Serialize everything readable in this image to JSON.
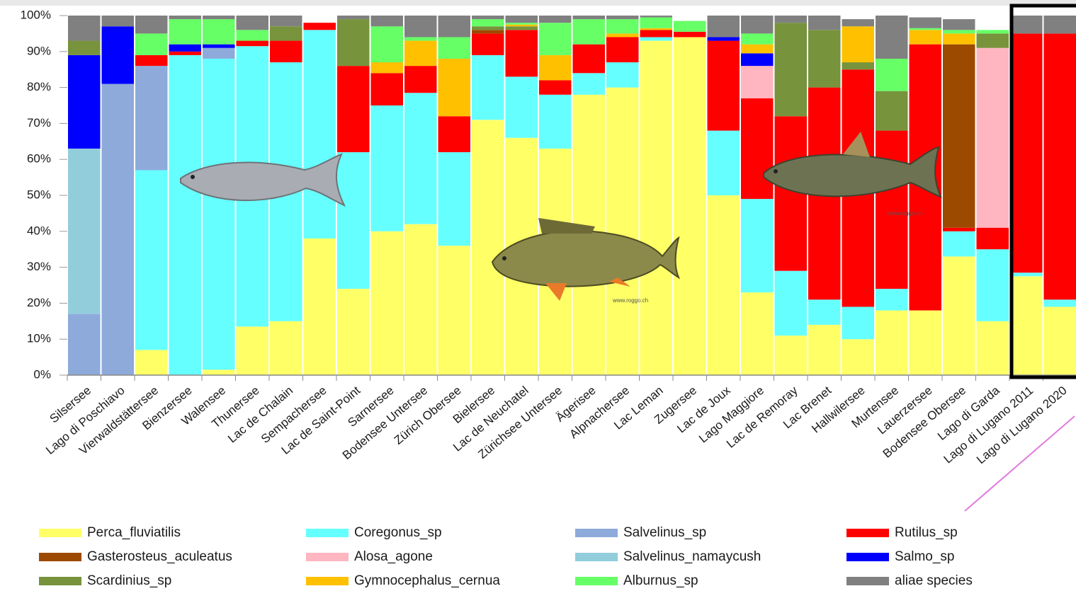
{
  "chart_data": {
    "type": "stacked_bar",
    "categories": [
      "Silsersee",
      "Lago di Poschiavo",
      "Vierwaldstättersee",
      "Bienzersee",
      "Walensee",
      "Thunersee",
      "Lac de Chalain",
      "Sempachersee",
      "Lac de Saint-Point",
      "Sarnersee",
      "Bodensee Untersee",
      "Zürich Obersee",
      "Bielersee",
      "Lac de Neuchatel",
      "Zürichsee Untersee",
      "Ägerisee",
      "Alpnachersee",
      "Lac Leman",
      "Zugersee",
      "Lac de Joux",
      "Lago Maggiore",
      "Lac de Remoray",
      "Lac Brenet",
      "Hallwilersee",
      "Murtensee",
      "Lauerzersee",
      "Bodensee Obersee",
      "Lago di Garda",
      "Lago di Lugano 2011",
      "Lago di Lugano 2020"
    ],
    "series": [
      {
        "name": "Perca_fluviatilis",
        "color": "#ffff66",
        "values": [
          0,
          0,
          7,
          0,
          1.5,
          13.5,
          15,
          38,
          24,
          40,
          42,
          36,
          71,
          66,
          63,
          78,
          80,
          93,
          94,
          50,
          23,
          11,
          14,
          10,
          18,
          18,
          33,
          15,
          27.5,
          19
        ]
      },
      {
        "name": "Coregonus_sp",
        "color": "#66ffff",
        "values": [
          0,
          0,
          50,
          89,
          86.5,
          78,
          72,
          58,
          38,
          35,
          36.5,
          26,
          18,
          17,
          15,
          6,
          7,
          1,
          0,
          18,
          26,
          18,
          7,
          9,
          6,
          0,
          7,
          20,
          1,
          2
        ]
      },
      {
        "name": "Salvelinus_sp",
        "color": "#8eaadb",
        "values": [
          17,
          81,
          29,
          0,
          3,
          0,
          0,
          0,
          0,
          0,
          0,
          0,
          0,
          0,
          0,
          0,
          0,
          0,
          0,
          0,
          0,
          0,
          0,
          0,
          0,
          0,
          0,
          0,
          0,
          0
        ]
      },
      {
        "name": "Salvelinus_namaycush",
        "color": "#92cddc",
        "values": [
          46,
          0,
          0,
          0,
          0,
          0,
          0,
          0,
          0,
          0,
          0,
          0,
          0,
          0,
          0,
          0,
          0,
          0,
          0,
          0,
          0,
          0,
          0,
          0,
          0,
          0,
          0,
          0,
          0,
          0
        ]
      },
      {
        "name": "Rutilus_sp",
        "color": "#ff0000",
        "values": [
          0,
          0,
          3,
          1,
          0,
          1.5,
          6,
          2,
          24,
          9,
          7.5,
          10,
          6,
          13,
          4,
          8,
          7,
          2,
          1.5,
          25,
          28,
          43,
          59,
          66,
          44,
          74,
          1,
          6,
          66.5,
          74
        ]
      },
      {
        "name": "Gasterosteus_aculeatus",
        "color": "#9c4a00",
        "values": [
          0,
          0,
          0,
          0,
          0,
          0,
          0,
          0,
          0,
          0,
          0,
          0,
          1,
          0,
          0,
          0,
          0,
          0,
          0,
          0,
          0,
          0,
          0,
          0,
          0,
          0,
          51,
          0,
          0,
          0
        ]
      },
      {
        "name": "Alosa_agone",
        "color": "#ffb6c1",
        "values": [
          0,
          0,
          0,
          0,
          0,
          0,
          0,
          0,
          0,
          0,
          0,
          0,
          0,
          0,
          0,
          0,
          0,
          0,
          0,
          0,
          9,
          0,
          0,
          0,
          0,
          0,
          0,
          50,
          0,
          0
        ]
      },
      {
        "name": "Salmo_sp",
        "color": "#0000ff",
        "values": [
          26,
          16,
          0,
          2,
          1,
          0,
          0,
          0,
          0,
          0,
          0,
          0,
          0,
          0,
          0,
          0,
          0,
          0,
          0,
          1,
          3.5,
          0,
          0,
          0,
          0,
          0,
          0,
          0,
          0,
          0
        ]
      },
      {
        "name": "Scardinius_sp",
        "color": "#77933c",
        "values": [
          4,
          0,
          0,
          0,
          0,
          0,
          4,
          0,
          13,
          0,
          0,
          0,
          1,
          1,
          0,
          0,
          0,
          0,
          0,
          0,
          0,
          26,
          16,
          2,
          11,
          0,
          0,
          4,
          0,
          0
        ]
      },
      {
        "name": "Gymnocephalus_cernua",
        "color": "#ffc000",
        "values": [
          0,
          0,
          0,
          0,
          0,
          0,
          0,
          0,
          0,
          3,
          7,
          16,
          0,
          0.5,
          7,
          0,
          1,
          0.5,
          0,
          0,
          2.5,
          0,
          0,
          10,
          0,
          4,
          3,
          0,
          0,
          0
        ]
      },
      {
        "name": "Alburnus_sp",
        "color": "#66ff66",
        "values": [
          0,
          0,
          6,
          7,
          7,
          3,
          0,
          0,
          0,
          10,
          1,
          6,
          2,
          0.5,
          9,
          7,
          4,
          3,
          3,
          0,
          3,
          0,
          0,
          0,
          9,
          0.5,
          1,
          1,
          0,
          0
        ]
      },
      {
        "name": "aliae species",
        "color": "#808080",
        "values": [
          7,
          3,
          5,
          1,
          1,
          4,
          3,
          0,
          1,
          3,
          6,
          6,
          1,
          2,
          2,
          1,
          1,
          0.5,
          0,
          6,
          5,
          2,
          4,
          2,
          12,
          3,
          3,
          0,
          5,
          5
        ]
      }
    ],
    "ylim": [
      0,
      100
    ],
    "yticks": [
      {
        "value": 0,
        "label": "0%"
      },
      {
        "value": 10,
        "label": "10%"
      },
      {
        "value": 20,
        "label": "20%"
      },
      {
        "value": 30,
        "label": "30%"
      },
      {
        "value": 40,
        "label": "40%"
      },
      {
        "value": 50,
        "label": "50%"
      },
      {
        "value": 60,
        "label": "60%"
      },
      {
        "value": 70,
        "label": "70%"
      },
      {
        "value": 80,
        "label": "80%"
      },
      {
        "value": 90,
        "label": "90%"
      },
      {
        "value": 100,
        "label": "100%"
      }
    ],
    "grid": false,
    "annotations": [
      "www.roggo.ch",
      "www.roggo.ch"
    ]
  }
}
